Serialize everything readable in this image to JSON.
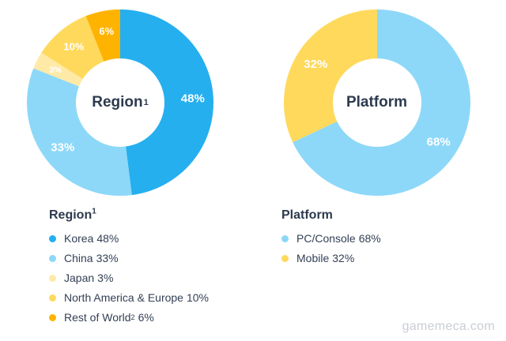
{
  "watermark": {
    "text": "gamemeca.com"
  },
  "chart_data": [
    {
      "type": "pie",
      "style": "donut",
      "title": "Region",
      "title_superscript": "1",
      "legend_position": "below",
      "start_angle_deg": 0,
      "direction": "clockwise",
      "segments": [
        {
          "label": "Korea",
          "value": 48,
          "display": "48%",
          "color": "#25afef"
        },
        {
          "label": "China",
          "value": 33,
          "display": "33%",
          "color": "#8dd8f8"
        },
        {
          "label": "Japan",
          "value": 3,
          "display": "3%",
          "color": "#ffe9a6"
        },
        {
          "label": "North America & Europe",
          "value": 10,
          "display": "10%",
          "color": "#ffd95c"
        },
        {
          "label": "Rest of World",
          "label_superscript": "2",
          "value": 6,
          "display": "6%",
          "color": "#ffb301"
        }
      ]
    },
    {
      "type": "pie",
      "style": "donut",
      "title": "Platform",
      "title_superscript": "",
      "legend_position": "below",
      "start_angle_deg": 0,
      "direction": "clockwise",
      "segments": [
        {
          "label": "PC/Console",
          "value": 68,
          "display": "68%",
          "color": "#8dd8f8"
        },
        {
          "label": "Mobile",
          "value": 32,
          "display": "32%",
          "color": "#ffd95c"
        }
      ]
    }
  ]
}
